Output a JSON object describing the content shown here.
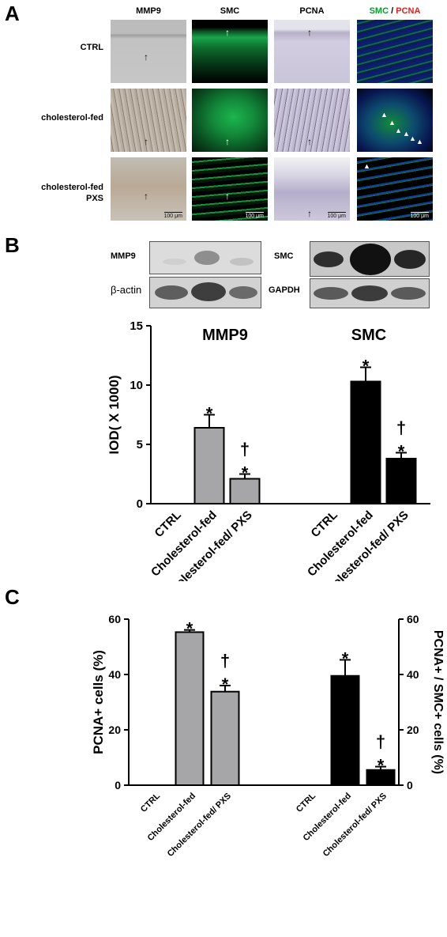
{
  "panels": {
    "a": "A",
    "b": "B",
    "c": "C"
  },
  "panel_a": {
    "columns": [
      "MMP9",
      "SMC",
      "PCNA"
    ],
    "merge_label": {
      "smc": "SMC",
      "sep": " / ",
      "pcna": "PCNA"
    },
    "rows": [
      "CTRL",
      "cholesterol-fed",
      "cholesterol-fed\nPXS"
    ],
    "scale_bar": "100 μm",
    "arrow": "↑",
    "arrowhead": "▲"
  },
  "panel_b": {
    "blots": {
      "mmp9": "MMP9",
      "beta_actin": "β-actin",
      "smc": "SMC",
      "gapdh": "GAPDH"
    }
  },
  "colors": {
    "gray_bar": "#a6a6a8",
    "black_bar": "#000000",
    "smc_green": "#0a9a2e",
    "pcna_red": "#e0211b"
  },
  "chart_data": [
    {
      "type": "bar",
      "panel": "B",
      "ylabel": "IOD( X 1000)",
      "ylim": [
        0,
        15
      ],
      "yticks": [
        0,
        5,
        10,
        15
      ],
      "categories": [
        "CTRL",
        "Cholesterol-fed",
        "Cholesterol-fed/ PXS"
      ],
      "grid": false,
      "series": [
        {
          "name": "MMP9",
          "color": "#a6a6a8",
          "values": [
            0,
            6.4,
            2.1
          ],
          "errors": [
            0,
            1.1,
            0.4
          ],
          "marks": [
            "",
            "*",
            "†\n*"
          ]
        },
        {
          "name": "SMC",
          "color": "#000000",
          "values": [
            0,
            10.3,
            3.8
          ],
          "errors": [
            0,
            1.2,
            0.5
          ],
          "marks": [
            "",
            "*",
            "†\n*"
          ]
        }
      ]
    },
    {
      "type": "bar",
      "panel": "C",
      "ylabel": "PCNA+ cells (%)",
      "ylabel_right": "PCNA+ / SMC+ cells (%)",
      "ylim": [
        0,
        60
      ],
      "yticks": [
        0,
        20,
        40,
        60
      ],
      "categories": [
        "CTRL",
        "Cholesterol-fed",
        "Cholesterol-fed/ PXS"
      ],
      "grid": false,
      "series": [
        {
          "axis": "left",
          "color": "#a6a6a8",
          "values": [
            0,
            55.3,
            33.8
          ],
          "errors": [
            0,
            0.8,
            2.2
          ],
          "marks": [
            "",
            "*",
            "†\n*"
          ]
        },
        {
          "axis": "right",
          "color": "#000000",
          "values": [
            0,
            39.5,
            5.5
          ],
          "errors": [
            0,
            5.8,
            1.2
          ],
          "marks": [
            "",
            "*",
            "†\n*"
          ]
        }
      ]
    }
  ]
}
